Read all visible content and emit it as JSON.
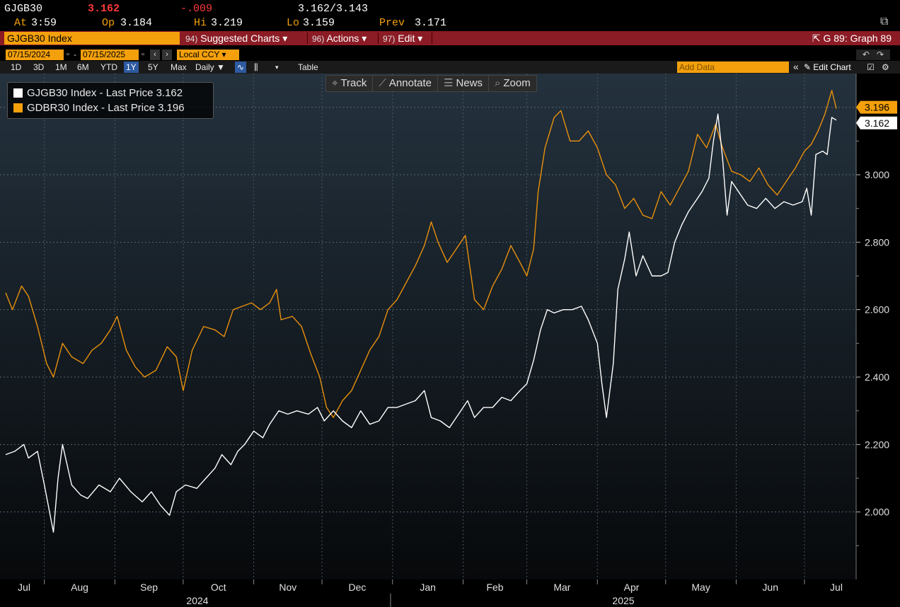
{
  "quote": {
    "ticker": "GJGB30",
    "last": "3.162",
    "change": "-.009",
    "bid_ask": "3.162/3.143",
    "at_label": "At",
    "at_value": "3:59",
    "open_label": "Op",
    "open_value": "3.184",
    "high_label": "Hi",
    "high_value": "3.219",
    "low_label": "Lo",
    "low_value": "3.159",
    "prev_label": "Prev",
    "prev_value": "3.171"
  },
  "command_bar": {
    "security": "GJGB30 Index",
    "menus": [
      {
        "num": "94)",
        "label": "Suggested Charts ▾"
      },
      {
        "num": "96)",
        "label": "Actions ▾"
      },
      {
        "num": "97)",
        "label": "Edit ▾"
      }
    ],
    "right_label": "G 89: Graph 89"
  },
  "date_range": {
    "start": "07/15/2024",
    "separator": "-",
    "end": "07/15/2025",
    "currency": "Local CCY"
  },
  "periods": [
    "1D",
    "3D",
    "1M",
    "6M",
    "YTD",
    "1Y",
    "5Y",
    "Max"
  ],
  "active_period": "1Y",
  "frequency": "Daily ▼",
  "table_label": "Table",
  "add_data_placeholder": "Add Data",
  "edit_chart_label": "Edit Chart",
  "chart_tools": [
    {
      "icon": "crosshair-icon",
      "label": "Track"
    },
    {
      "icon": "pencil-icon",
      "label": "Annotate"
    },
    {
      "icon": "news-icon",
      "label": "News"
    },
    {
      "icon": "magnifier-icon",
      "label": "Zoom"
    }
  ],
  "colors": {
    "accent": "#f3a00c",
    "command_bar": "#8b1b24",
    "series_white": "#ffffff",
    "series_orange": "#e8900c",
    "negative": "#ff3b3b"
  },
  "chart_data": {
    "type": "line",
    "x_start": "2024-07-15",
    "x_end": "2025-07-15",
    "ylim": [
      1.8,
      3.3
    ],
    "y_ticks": [
      2.0,
      2.2,
      2.4,
      2.6,
      2.8,
      3.0
    ],
    "y_tick_labels": [
      "2.000",
      "2.200",
      "2.400",
      "2.600",
      "2.800",
      "3.000"
    ],
    "month_labels": [
      "Jul",
      "Aug",
      "Sep",
      "Oct",
      "Nov",
      "Dec",
      "Jan",
      "Feb",
      "Mar",
      "Apr",
      "May",
      "Jun",
      "Jul"
    ],
    "year_labels": [
      "2024",
      "2025"
    ],
    "grid": true,
    "legend_position": "top-left",
    "series": [
      {
        "name": "GJGB30 Index - Last Price 3.162",
        "last_label": "3.162",
        "color": "#ffffff",
        "points": [
          [
            "2024-07-15",
            2.17
          ],
          [
            "2024-07-19",
            2.18
          ],
          [
            "2024-07-23",
            2.2
          ],
          [
            "2024-07-25",
            2.16
          ],
          [
            "2024-07-29",
            2.18
          ],
          [
            "2024-08-01",
            2.08
          ],
          [
            "2024-08-05",
            1.94
          ],
          [
            "2024-08-07",
            2.1
          ],
          [
            "2024-08-09",
            2.2
          ],
          [
            "2024-08-13",
            2.08
          ],
          [
            "2024-08-17",
            2.05
          ],
          [
            "2024-08-20",
            2.04
          ],
          [
            "2024-08-25",
            2.08
          ],
          [
            "2024-08-30",
            2.06
          ],
          [
            "2024-09-03",
            2.1
          ],
          [
            "2024-09-08",
            2.06
          ],
          [
            "2024-09-13",
            2.03
          ],
          [
            "2024-09-17",
            2.06
          ],
          [
            "2024-09-21",
            2.02
          ],
          [
            "2024-09-25",
            1.99
          ],
          [
            "2024-09-28",
            2.06
          ],
          [
            "2024-10-02",
            2.08
          ],
          [
            "2024-10-07",
            2.07
          ],
          [
            "2024-10-11",
            2.1
          ],
          [
            "2024-10-15",
            2.13
          ],
          [
            "2024-10-18",
            2.17
          ],
          [
            "2024-10-22",
            2.14
          ],
          [
            "2024-10-25",
            2.18
          ],
          [
            "2024-10-28",
            2.2
          ],
          [
            "2024-11-01",
            2.24
          ],
          [
            "2024-11-05",
            2.22
          ],
          [
            "2024-11-08",
            2.26
          ],
          [
            "2024-11-12",
            2.3
          ],
          [
            "2024-11-16",
            2.29
          ],
          [
            "2024-11-20",
            2.3
          ],
          [
            "2024-11-25",
            2.29
          ],
          [
            "2024-11-29",
            2.31
          ],
          [
            "2024-12-02",
            2.27
          ],
          [
            "2024-12-06",
            2.3
          ],
          [
            "2024-12-10",
            2.27
          ],
          [
            "2024-12-14",
            2.25
          ],
          [
            "2024-12-18",
            2.3
          ],
          [
            "2024-12-22",
            2.26
          ],
          [
            "2024-12-26",
            2.27
          ],
          [
            "2024-12-30",
            2.31
          ],
          [
            "2025-01-03",
            2.31
          ],
          [
            "2025-01-07",
            2.32
          ],
          [
            "2025-01-11",
            2.33
          ],
          [
            "2025-01-15",
            2.36
          ],
          [
            "2025-01-18",
            2.28
          ],
          [
            "2025-01-22",
            2.27
          ],
          [
            "2025-01-26",
            2.25
          ],
          [
            "2025-01-30",
            2.29
          ],
          [
            "2025-02-03",
            2.33
          ],
          [
            "2025-02-06",
            2.28
          ],
          [
            "2025-02-10",
            2.31
          ],
          [
            "2025-02-14",
            2.31
          ],
          [
            "2025-02-18",
            2.34
          ],
          [
            "2025-02-22",
            2.33
          ],
          [
            "2025-02-26",
            2.36
          ],
          [
            "2025-03-01",
            2.38
          ],
          [
            "2025-03-04",
            2.45
          ],
          [
            "2025-03-07",
            2.54
          ],
          [
            "2025-03-10",
            2.6
          ],
          [
            "2025-03-13",
            2.59
          ],
          [
            "2025-03-17",
            2.6
          ],
          [
            "2025-03-21",
            2.6
          ],
          [
            "2025-03-25",
            2.61
          ],
          [
            "2025-03-28",
            2.57
          ],
          [
            "2025-04-01",
            2.5
          ],
          [
            "2025-04-03",
            2.38
          ],
          [
            "2025-04-05",
            2.28
          ],
          [
            "2025-04-08",
            2.44
          ],
          [
            "2025-04-10",
            2.66
          ],
          [
            "2025-04-13",
            2.75
          ],
          [
            "2025-04-15",
            2.83
          ],
          [
            "2025-04-18",
            2.7
          ],
          [
            "2025-04-21",
            2.76
          ],
          [
            "2025-04-25",
            2.7
          ],
          [
            "2025-04-29",
            2.7
          ],
          [
            "2025-05-02",
            2.71
          ],
          [
            "2025-05-05",
            2.8
          ],
          [
            "2025-05-08",
            2.85
          ],
          [
            "2025-05-11",
            2.89
          ],
          [
            "2025-05-14",
            2.92
          ],
          [
            "2025-05-17",
            2.95
          ],
          [
            "2025-05-20",
            2.99
          ],
          [
            "2025-05-22",
            3.1
          ],
          [
            "2025-05-24",
            3.18
          ],
          [
            "2025-05-26",
            3.05
          ],
          [
            "2025-05-28",
            2.88
          ],
          [
            "2025-05-30",
            2.98
          ],
          [
            "2025-06-02",
            2.95
          ],
          [
            "2025-06-06",
            2.91
          ],
          [
            "2025-06-10",
            2.9
          ],
          [
            "2025-06-14",
            2.93
          ],
          [
            "2025-06-18",
            2.9
          ],
          [
            "2025-06-22",
            2.92
          ],
          [
            "2025-06-26",
            2.91
          ],
          [
            "2025-06-30",
            2.92
          ],
          [
            "2025-07-02",
            2.96
          ],
          [
            "2025-07-04",
            2.88
          ],
          [
            "2025-07-06",
            3.06
          ],
          [
            "2025-07-09",
            3.07
          ],
          [
            "2025-07-11",
            3.06
          ],
          [
            "2025-07-13",
            3.17
          ],
          [
            "2025-07-15",
            3.162
          ]
        ]
      },
      {
        "name": "GDBR30 Index - Last Price 3.196",
        "last_label": "3.196",
        "color": "#e8900c",
        "points": [
          [
            "2024-07-15",
            2.65
          ],
          [
            "2024-07-18",
            2.6
          ],
          [
            "2024-07-22",
            2.67
          ],
          [
            "2024-07-25",
            2.64
          ],
          [
            "2024-07-29",
            2.55
          ],
          [
            "2024-08-02",
            2.44
          ],
          [
            "2024-08-05",
            2.4
          ],
          [
            "2024-08-09",
            2.5
          ],
          [
            "2024-08-13",
            2.46
          ],
          [
            "2024-08-18",
            2.44
          ],
          [
            "2024-08-22",
            2.48
          ],
          [
            "2024-08-26",
            2.5
          ],
          [
            "2024-08-30",
            2.54
          ],
          [
            "2024-09-02",
            2.58
          ],
          [
            "2024-09-06",
            2.48
          ],
          [
            "2024-09-10",
            2.43
          ],
          [
            "2024-09-14",
            2.4
          ],
          [
            "2024-09-19",
            2.42
          ],
          [
            "2024-09-24",
            2.49
          ],
          [
            "2024-09-28",
            2.46
          ],
          [
            "2024-10-01",
            2.36
          ],
          [
            "2024-10-05",
            2.48
          ],
          [
            "2024-10-10",
            2.55
          ],
          [
            "2024-10-15",
            2.54
          ],
          [
            "2024-10-19",
            2.52
          ],
          [
            "2024-10-23",
            2.6
          ],
          [
            "2024-10-27",
            2.61
          ],
          [
            "2024-10-31",
            2.62
          ],
          [
            "2024-11-04",
            2.6
          ],
          [
            "2024-11-08",
            2.62
          ],
          [
            "2024-11-11",
            2.66
          ],
          [
            "2024-11-13",
            2.57
          ],
          [
            "2024-11-18",
            2.58
          ],
          [
            "2024-11-22",
            2.55
          ],
          [
            "2024-11-26",
            2.47
          ],
          [
            "2024-11-30",
            2.4
          ],
          [
            "2024-12-03",
            2.31
          ],
          [
            "2024-12-06",
            2.28
          ],
          [
            "2024-12-10",
            2.33
          ],
          [
            "2024-12-14",
            2.36
          ],
          [
            "2024-12-18",
            2.42
          ],
          [
            "2024-12-22",
            2.48
          ],
          [
            "2024-12-26",
            2.52
          ],
          [
            "2024-12-30",
            2.6
          ],
          [
            "2025-01-03",
            2.63
          ],
          [
            "2025-01-07",
            2.68
          ],
          [
            "2025-01-11",
            2.73
          ],
          [
            "2025-01-15",
            2.79
          ],
          [
            "2025-01-18",
            2.86
          ],
          [
            "2025-01-21",
            2.8
          ],
          [
            "2025-01-25",
            2.74
          ],
          [
            "2025-01-29",
            2.78
          ],
          [
            "2025-02-02",
            2.82
          ],
          [
            "2025-02-06",
            2.63
          ],
          [
            "2025-02-10",
            2.6
          ],
          [
            "2025-02-14",
            2.67
          ],
          [
            "2025-02-18",
            2.72
          ],
          [
            "2025-02-22",
            2.79
          ],
          [
            "2025-02-26",
            2.74
          ],
          [
            "2025-03-01",
            2.7
          ],
          [
            "2025-03-04",
            2.78
          ],
          [
            "2025-03-06",
            2.95
          ],
          [
            "2025-03-09",
            3.08
          ],
          [
            "2025-03-13",
            3.17
          ],
          [
            "2025-03-16",
            3.19
          ],
          [
            "2025-03-20",
            3.1
          ],
          [
            "2025-03-24",
            3.1
          ],
          [
            "2025-03-28",
            3.13
          ],
          [
            "2025-04-01",
            3.08
          ],
          [
            "2025-04-05",
            3.0
          ],
          [
            "2025-04-09",
            2.97
          ],
          [
            "2025-04-13",
            2.9
          ],
          [
            "2025-04-17",
            2.93
          ],
          [
            "2025-04-21",
            2.88
          ],
          [
            "2025-04-25",
            2.87
          ],
          [
            "2025-04-29",
            2.95
          ],
          [
            "2025-05-03",
            2.91
          ],
          [
            "2025-05-07",
            2.96
          ],
          [
            "2025-05-11",
            3.01
          ],
          [
            "2025-05-15",
            3.12
          ],
          [
            "2025-05-19",
            3.08
          ],
          [
            "2025-05-23",
            3.15
          ],
          [
            "2025-05-26",
            3.08
          ],
          [
            "2025-05-30",
            3.01
          ],
          [
            "2025-06-03",
            3.0
          ],
          [
            "2025-06-07",
            2.98
          ],
          [
            "2025-06-11",
            3.02
          ],
          [
            "2025-06-15",
            2.97
          ],
          [
            "2025-06-19",
            2.94
          ],
          [
            "2025-06-23",
            2.98
          ],
          [
            "2025-06-27",
            3.02
          ],
          [
            "2025-07-01",
            3.07
          ],
          [
            "2025-07-04",
            3.09
          ],
          [
            "2025-07-07",
            3.13
          ],
          [
            "2025-07-10",
            3.18
          ],
          [
            "2025-07-13",
            3.25
          ],
          [
            "2025-07-15",
            3.196
          ]
        ]
      }
    ]
  }
}
